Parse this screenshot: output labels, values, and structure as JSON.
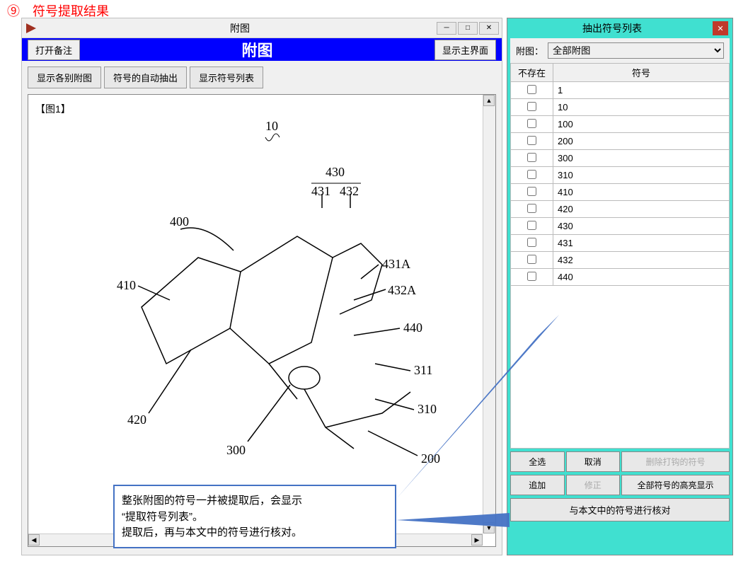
{
  "section_header": "⑨　符号提取结果",
  "left_window": {
    "title": "附图",
    "blue_bar": {
      "open_notes_btn": "打开备注",
      "title": "附图",
      "show_main_btn": "显示主界面"
    },
    "toolbar": {
      "show_each_btn": "显示各别附图",
      "auto_extract_btn": "符号的自动抽出",
      "show_list_btn": "显示符号列表"
    },
    "figure_label": "【图1】",
    "patent_labels": {
      "l10": "10",
      "l400": "400",
      "l410": "410",
      "l420": "420",
      "l300": "300",
      "l430": "430",
      "l431": "431",
      "l432": "432",
      "l431a": "431A",
      "l432a": "432A",
      "l440": "440",
      "l311": "311",
      "l310": "310",
      "l200": "200"
    }
  },
  "right_panel": {
    "title": "抽出符号列表",
    "filter_label": "附图：",
    "filter_value": "全部附图",
    "table": {
      "col_exists": "不存在",
      "col_symbol": "符号",
      "rows": [
        {
          "chk": false,
          "sym": "1"
        },
        {
          "chk": false,
          "sym": "10"
        },
        {
          "chk": false,
          "sym": "100"
        },
        {
          "chk": false,
          "sym": "200"
        },
        {
          "chk": false,
          "sym": "300"
        },
        {
          "chk": false,
          "sym": "310"
        },
        {
          "chk": false,
          "sym": "410"
        },
        {
          "chk": false,
          "sym": "420"
        },
        {
          "chk": false,
          "sym": "430"
        },
        {
          "chk": false,
          "sym": "431"
        },
        {
          "chk": false,
          "sym": "432"
        },
        {
          "chk": false,
          "sym": "440"
        }
      ]
    },
    "buttons": {
      "select_all": "全选",
      "cancel": "取消",
      "delete_checked": "删除打钩的符号",
      "add": "追加",
      "edit": "修正",
      "highlight_all": "全部符号的高亮显示",
      "compare": "与本文中的符号进行核对"
    }
  },
  "callout": {
    "line1": "整张附图的符号一并被提取后，会显示",
    "line2": "“提取符号列表”。",
    "line3": "提取后，再与本文中的符号进行核对。"
  },
  "colors": {
    "section_red": "#ff0000",
    "blue_bar": "#0000ff",
    "teal_panel": "#40e0d0",
    "callout_border": "#4472c4",
    "accent_close": "#c0392b"
  }
}
